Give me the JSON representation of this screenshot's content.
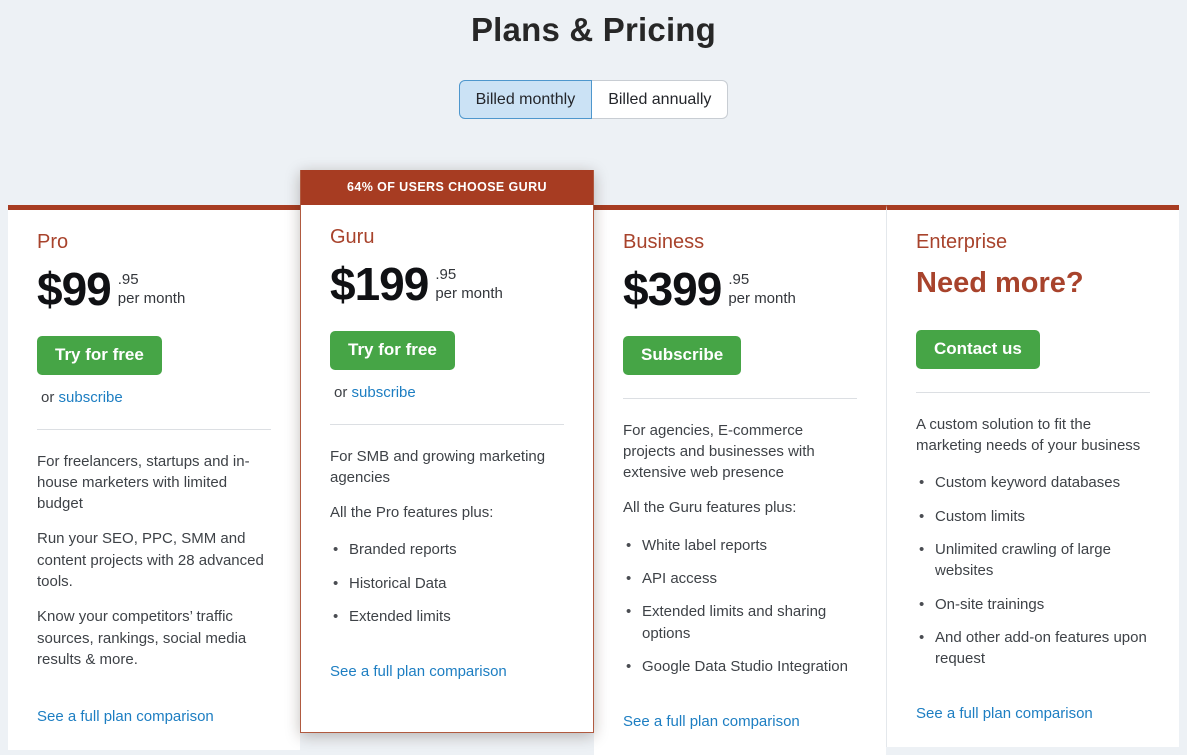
{
  "page": {
    "title": "Plans & Pricing"
  },
  "toggle": {
    "monthly": "Billed monthly",
    "annually": "Billed annually",
    "selected": "Billed monthly"
  },
  "colors": {
    "accent_red": "#a73c22",
    "button_green": "#46a546",
    "link_blue": "#1d7ec2",
    "toggle_active_bg": "#cbe2f5",
    "toggle_active_border": "#4e97cd",
    "page_background": "#edf1f5",
    "heading_text": "#272727",
    "body_text": "#3e4247",
    "plan_title_red": "#a8432c"
  },
  "plans": [
    {
      "name": "Pro",
      "price": {
        "currency": "$",
        "amount": "99",
        "cents": ".95",
        "period": "per month"
      },
      "cta": "Try for free",
      "secondary": {
        "prefix": "or",
        "link": "subscribe"
      },
      "paragraphs": [
        "For freelancers, startups and in-house marketers with limited budget",
        "Run your SEO, PPC, SMM and content projects with 28 advanced tools.",
        "Know your competitors’ traffic sources, rankings, social media results & more."
      ],
      "bullets": [],
      "compare_link": "See a full plan comparison"
    },
    {
      "name": "Guru",
      "featured": true,
      "banner": "64% OF USERS CHOOSE GURU",
      "price": {
        "currency": "$",
        "amount": "199",
        "cents": ".95",
        "period": "per month"
      },
      "cta": "Try for free",
      "secondary": {
        "prefix": "or",
        "link": "subscribe"
      },
      "paragraphs": [
        "For SMB and growing marketing agencies",
        "All the Pro features plus:"
      ],
      "bullets": [
        "Branded reports",
        "Historical Data",
        "Extended limits"
      ],
      "compare_link": "See a full plan comparison"
    },
    {
      "name": "Business",
      "price": {
        "currency": "$",
        "amount": "399",
        "cents": ".95",
        "period": "per month"
      },
      "cta": "Subscribe",
      "paragraphs": [
        "For agencies, E-commerce projects and businesses with extensive web presence",
        "All the Guru features plus:"
      ],
      "bullets": [
        "White label reports",
        "API access",
        "Extended limits and sharing options",
        "Google Data Studio Integration"
      ],
      "compare_link": "See a full plan comparison"
    },
    {
      "name": "Enterprise",
      "headline": "Need more?",
      "cta": "Contact us",
      "paragraphs": [
        "A custom solution to fit the marketing needs of your business"
      ],
      "bullets": [
        "Custom keyword databases",
        "Custom limits",
        "Unlimited crawling of large websites",
        "On-site trainings",
        "And other add-on features upon request"
      ],
      "compare_link": "See a full plan comparison"
    }
  ]
}
